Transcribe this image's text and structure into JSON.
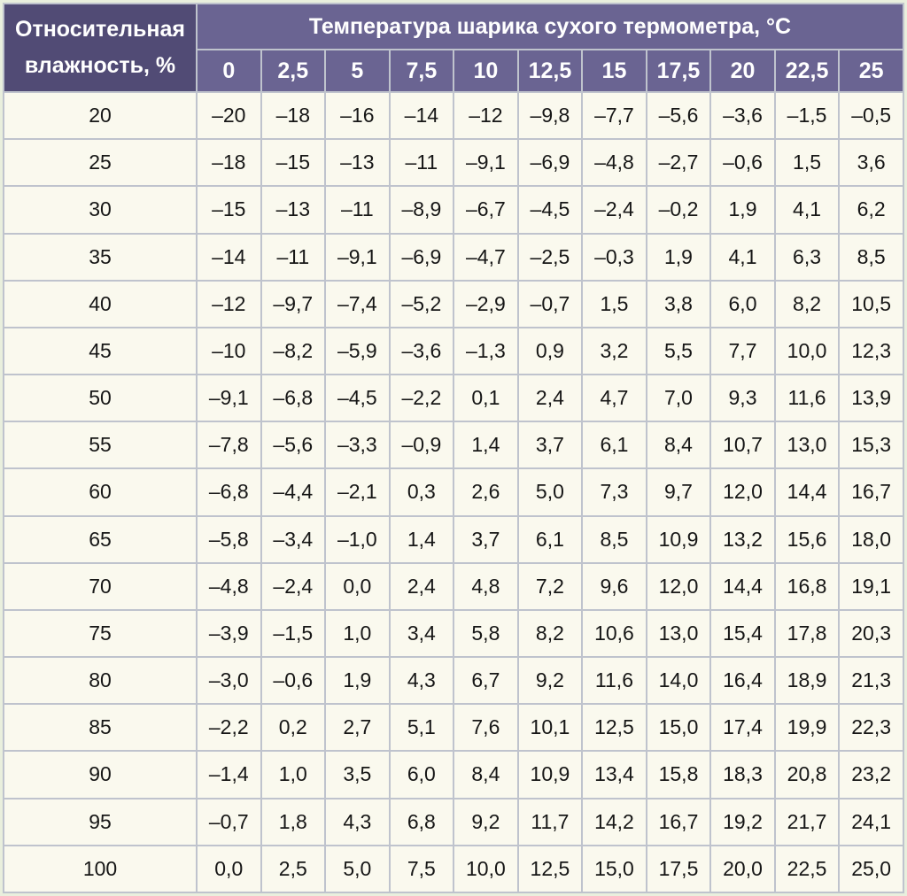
{
  "table": {
    "corner_line1": "Относительная",
    "corner_line2": "влажность, %",
    "group_title": "Температура шарика сухого термометра, °С",
    "columns": [
      "0",
      "2,5",
      "5",
      "7,5",
      "10",
      "12,5",
      "15",
      "17,5",
      "20",
      "22,5",
      "25"
    ],
    "rows": [
      {
        "humidity": "20",
        "values": [
          "–20",
          "–18",
          "–16",
          "–14",
          "–12",
          "–9,8",
          "–7,7",
          "–5,6",
          "–3,6",
          "–1,5",
          "–0,5"
        ]
      },
      {
        "humidity": "25",
        "values": [
          "–18",
          "–15",
          "–13",
          "–11",
          "–9,1",
          "–6,9",
          "–4,8",
          "–2,7",
          "–0,6",
          "1,5",
          "3,6"
        ]
      },
      {
        "humidity": "30",
        "values": [
          "–15",
          "–13",
          "–11",
          "–8,9",
          "–6,7",
          "–4,5",
          "–2,4",
          "–0,2",
          "1,9",
          "4,1",
          "6,2"
        ]
      },
      {
        "humidity": "35",
        "values": [
          "–14",
          "–11",
          "–9,1",
          "–6,9",
          "–4,7",
          "–2,5",
          "–0,3",
          "1,9",
          "4,1",
          "6,3",
          "8,5"
        ]
      },
      {
        "humidity": "40",
        "values": [
          "–12",
          "–9,7",
          "–7,4",
          "–5,2",
          "–2,9",
          "–0,7",
          "1,5",
          "3,8",
          "6,0",
          "8,2",
          "10,5"
        ]
      },
      {
        "humidity": "45",
        "values": [
          "–10",
          "–8,2",
          "–5,9",
          "–3,6",
          "–1,3",
          "0,9",
          "3,2",
          "5,5",
          "7,7",
          "10,0",
          "12,3"
        ]
      },
      {
        "humidity": "50",
        "values": [
          "–9,1",
          "–6,8",
          "–4,5",
          "–2,2",
          "0,1",
          "2,4",
          "4,7",
          "7,0",
          "9,3",
          "11,6",
          "13,9"
        ]
      },
      {
        "humidity": "55",
        "values": [
          "–7,8",
          "–5,6",
          "–3,3",
          "–0,9",
          "1,4",
          "3,7",
          "6,1",
          "8,4",
          "10,7",
          "13,0",
          "15,3"
        ]
      },
      {
        "humidity": "60",
        "values": [
          "–6,8",
          "–4,4",
          "–2,1",
          "0,3",
          "2,6",
          "5,0",
          "7,3",
          "9,7",
          "12,0",
          "14,4",
          "16,7"
        ]
      },
      {
        "humidity": "65",
        "values": [
          "–5,8",
          "–3,4",
          "–1,0",
          "1,4",
          "3,7",
          "6,1",
          "8,5",
          "10,9",
          "13,2",
          "15,6",
          "18,0"
        ]
      },
      {
        "humidity": "70",
        "values": [
          "–4,8",
          "–2,4",
          "0,0",
          "2,4",
          "4,8",
          "7,2",
          "9,6",
          "12,0",
          "14,4",
          "16,8",
          "19,1"
        ]
      },
      {
        "humidity": "75",
        "values": [
          "–3,9",
          "–1,5",
          "1,0",
          "3,4",
          "5,8",
          "8,2",
          "10,6",
          "13,0",
          "15,4",
          "17,8",
          "20,3"
        ]
      },
      {
        "humidity": "80",
        "values": [
          "–3,0",
          "–0,6",
          "1,9",
          "4,3",
          "6,7",
          "9,2",
          "11,6",
          "14,0",
          "16,4",
          "18,9",
          "21,3"
        ]
      },
      {
        "humidity": "85",
        "values": [
          "–2,2",
          "0,2",
          "2,7",
          "5,1",
          "7,6",
          "10,1",
          "12,5",
          "15,0",
          "17,4",
          "19,9",
          "22,3"
        ]
      },
      {
        "humidity": "90",
        "values": [
          "–1,4",
          "1,0",
          "3,5",
          "6,0",
          "8,4",
          "10,9",
          "13,4",
          "15,8",
          "18,3",
          "20,8",
          "23,2"
        ]
      },
      {
        "humidity": "95",
        "values": [
          "–0,7",
          "1,8",
          "4,3",
          "6,8",
          "9,2",
          "11,7",
          "14,2",
          "16,7",
          "19,2",
          "21,7",
          "24,1"
        ]
      },
      {
        "humidity": "100",
        "values": [
          "0,0",
          "2,5",
          "5,0",
          "7,5",
          "10,0",
          "12,5",
          "15,0",
          "17,5",
          "20,0",
          "22,5",
          "25,0"
        ]
      }
    ]
  },
  "colors": {
    "corner_bg": "#514b75",
    "header_bg": "#6a6492",
    "cell_bg": "#faf9ee",
    "grid": "#bfc3cd",
    "outer_edge": "#e9efdd",
    "header_text": "#ffffff",
    "cell_text": "#161616"
  },
  "chart_data": {
    "type": "table",
    "title": "Температура шарика сухого термометра, °С",
    "row_axis_label": "Относительная влажность, %",
    "columns": [
      0,
      2.5,
      5,
      7.5,
      10,
      12.5,
      15,
      17.5,
      20,
      22.5,
      25
    ],
    "humidity_percent": [
      20,
      25,
      30,
      35,
      40,
      45,
      50,
      55,
      60,
      65,
      70,
      75,
      80,
      85,
      90,
      95,
      100
    ],
    "values": [
      [
        -20,
        -18,
        -16,
        -14,
        -12,
        -9.8,
        -7.7,
        -5.6,
        -3.6,
        -1.5,
        -0.5
      ],
      [
        -18,
        -15,
        -13,
        -11,
        -9.1,
        -6.9,
        -4.8,
        -2.7,
        -0.6,
        1.5,
        3.6
      ],
      [
        -15,
        -13,
        -11,
        -8.9,
        -6.7,
        -4.5,
        -2.4,
        -0.2,
        1.9,
        4.1,
        6.2
      ],
      [
        -14,
        -11,
        -9.1,
        -6.9,
        -4.7,
        -2.5,
        -0.3,
        1.9,
        4.1,
        6.3,
        8.5
      ],
      [
        -12,
        -9.7,
        -7.4,
        -5.2,
        -2.9,
        -0.7,
        1.5,
        3.8,
        6.0,
        8.2,
        10.5
      ],
      [
        -10,
        -8.2,
        -5.9,
        -3.6,
        -1.3,
        0.9,
        3.2,
        5.5,
        7.7,
        10.0,
        12.3
      ],
      [
        -9.1,
        -6.8,
        -4.5,
        -2.2,
        0.1,
        2.4,
        4.7,
        7.0,
        9.3,
        11.6,
        13.9
      ],
      [
        -7.8,
        -5.6,
        -3.3,
        -0.9,
        1.4,
        3.7,
        6.1,
        8.4,
        10.7,
        13.0,
        15.3
      ],
      [
        -6.8,
        -4.4,
        -2.1,
        0.3,
        2.6,
        5.0,
        7.3,
        9.7,
        12.0,
        14.4,
        16.7
      ],
      [
        -5.8,
        -3.4,
        -1.0,
        1.4,
        3.7,
        6.1,
        8.5,
        10.9,
        13.2,
        15.6,
        18.0
      ],
      [
        -4.8,
        -2.4,
        0.0,
        2.4,
        4.8,
        7.2,
        9.6,
        12.0,
        14.4,
        16.8,
        19.1
      ],
      [
        -3.9,
        -1.5,
        1.0,
        3.4,
        5.8,
        8.2,
        10.6,
        13.0,
        15.4,
        17.8,
        20.3
      ],
      [
        -3.0,
        -0.6,
        1.9,
        4.3,
        6.7,
        9.2,
        11.6,
        14.0,
        16.4,
        18.9,
        21.3
      ],
      [
        -2.2,
        0.2,
        2.7,
        5.1,
        7.6,
        10.1,
        12.5,
        15.0,
        17.4,
        19.9,
        22.3
      ],
      [
        -1.4,
        1.0,
        3.5,
        6.0,
        8.4,
        10.9,
        13.4,
        15.8,
        18.3,
        20.8,
        23.2
      ],
      [
        -0.7,
        1.8,
        4.3,
        6.8,
        9.2,
        11.7,
        14.2,
        16.7,
        19.2,
        21.7,
        24.1
      ],
      [
        0.0,
        2.5,
        5.0,
        7.5,
        10.0,
        12.5,
        15.0,
        17.5,
        20.0,
        22.5,
        25.0
      ]
    ]
  }
}
